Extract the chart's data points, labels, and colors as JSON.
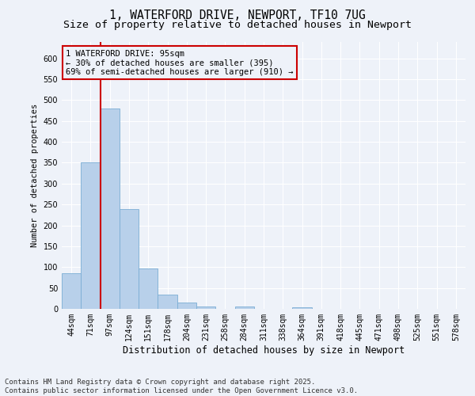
{
  "title_line1": "1, WATERFORD DRIVE, NEWPORT, TF10 7UG",
  "title_line2": "Size of property relative to detached houses in Newport",
  "xlabel": "Distribution of detached houses by size in Newport",
  "ylabel": "Number of detached properties",
  "bar_values": [
    85,
    350,
    480,
    238,
    97,
    35,
    15,
    5,
    0,
    6,
    0,
    0,
    3,
    0,
    0,
    0,
    0,
    0,
    0,
    0,
    0
  ],
  "categories": [
    "44sqm",
    "71sqm",
    "97sqm",
    "124sqm",
    "151sqm",
    "178sqm",
    "204sqm",
    "231sqm",
    "258sqm",
    "284sqm",
    "311sqm",
    "338sqm",
    "364sqm",
    "391sqm",
    "418sqm",
    "445sqm",
    "471sqm",
    "498sqm",
    "525sqm",
    "551sqm",
    "578sqm"
  ],
  "bar_color": "#b8d0ea",
  "bar_edgecolor": "#7aadd4",
  "vline_color": "#cc0000",
  "annotation_text": "1 WATERFORD DRIVE: 95sqm\n← 30% of detached houses are smaller (395)\n69% of semi-detached houses are larger (910) →",
  "annotation_box_color": "#cc0000",
  "ylim": [
    0,
    640
  ],
  "yticks": [
    0,
    50,
    100,
    150,
    200,
    250,
    300,
    350,
    400,
    450,
    500,
    550,
    600
  ],
  "background_color": "#eef2f9",
  "grid_color": "#ffffff",
  "footer_text": "Contains HM Land Registry data © Crown copyright and database right 2025.\nContains public sector information licensed under the Open Government Licence v3.0.",
  "title_fontsize": 10.5,
  "subtitle_fontsize": 9.5,
  "annotation_fontsize": 7.5,
  "footer_fontsize": 6.5,
  "ylabel_fontsize": 7.5,
  "xlabel_fontsize": 8.5,
  "tick_fontsize": 7
}
